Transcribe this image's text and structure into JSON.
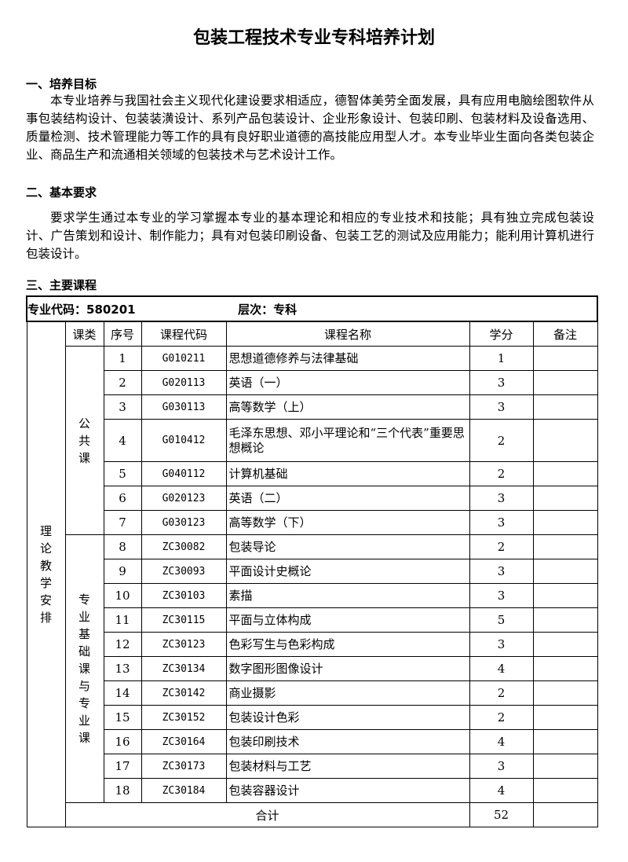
{
  "title": "包装工程技术专业专科培养计划",
  "sections": [
    {
      "heading": "一、培养目标",
      "text": "本专业培养与我国社会主义现代化建设要求相适应，德智体美劳全面发展，具有应用电脑绘图软件从事包装结构设计、包装装潢设计、系列产品包装设计、企业形象设计、包装印刷、包装材料及设备选用、质量检测、技术管理能力等工作的具有良好职业道德的高技能应用型人才。本专业毕业生面向各类包装企业、商品生产和流通相关领域的包装技术与艺术设计工作。"
    },
    {
      "heading": "二、基本要求",
      "text": "要求学生通过本专业的学习掌握本专业的基本理论和相应的专业技术和技能；具有独立完成包装设计、广告策划和设计、制作能力；具有对包装印刷设备、包装工艺的测试及应用能力；能利用计算机进行包装设计。"
    },
    {
      "heading": "三、主要课程"
    }
  ],
  "table": {
    "major_code": "专业代码：580201",
    "level": "层次：专科",
    "headers": [
      "课类",
      "序号",
      "课程代码",
      "课程名称",
      "学分",
      "备注"
    ],
    "group_outer": "理论教学安排",
    "group_public": "公共课",
    "group_major": "专业基础课与专业课",
    "rows": [
      {
        "no": "1",
        "code": "G010211",
        "name": "思想道德修养与法律基础",
        "credit": "1"
      },
      {
        "no": "2",
        "code": "G020113",
        "name": "英语（一）",
        "credit": "3"
      },
      {
        "no": "3",
        "code": "G030113",
        "name": "高等数学（上）",
        "credit": "3"
      },
      {
        "no": "4",
        "code": "G010412",
        "name": "毛泽东思想、邓小平理论和“三个代表”重要思想概论",
        "credit": "2"
      },
      {
        "no": "5",
        "code": "G040112",
        "name": "计算机基础",
        "credit": "2"
      },
      {
        "no": "6",
        "code": "G020123",
        "name": "英语（二）",
        "credit": "3"
      },
      {
        "no": "7",
        "code": "G030123",
        "name": "高等数学（下）",
        "credit": "3"
      },
      {
        "no": "8",
        "code": "ZC30082",
        "name": "包装导论",
        "credit": "2"
      },
      {
        "no": "9",
        "code": "ZC30093",
        "name": "平面设计史概论",
        "credit": "3"
      },
      {
        "no": "10",
        "code": "ZC30103",
        "name": "素描",
        "credit": "3"
      },
      {
        "no": "11",
        "code": "ZC30115",
        "name": "平面与立体构成",
        "credit": "5"
      },
      {
        "no": "12",
        "code": "ZC30123",
        "name": "色彩写生与色彩构成",
        "credit": "3"
      },
      {
        "no": "13",
        "code": "ZC30134",
        "name": "数字图形图像设计",
        "credit": "4"
      },
      {
        "no": "14",
        "code": "ZC30142",
        "name": "商业摄影",
        "credit": "2"
      },
      {
        "no": "15",
        "code": "ZC30152",
        "name": "包装设计色彩",
        "credit": "2"
      },
      {
        "no": "16",
        "code": "ZC30164",
        "name": "包装印刷技术",
        "credit": "4"
      },
      {
        "no": "17",
        "code": "ZC30173",
        "name": "包装材料与工艺",
        "credit": "3"
      },
      {
        "no": "18",
        "code": "ZC30184",
        "name": "包装容器设计",
        "credit": "4"
      }
    ],
    "total_label": "合计",
    "total_credit": "52"
  }
}
